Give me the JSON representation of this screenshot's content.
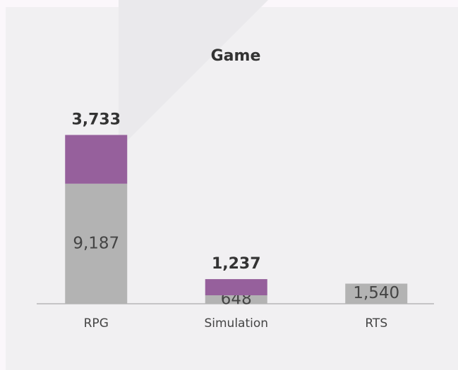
{
  "chart_data": {
    "type": "stacked_bar",
    "title": "Game",
    "categories": [
      "RPG",
      "Simulation",
      "RTS"
    ],
    "series": [
      {
        "color": "#b3b3b3",
        "values": [
          9187,
          648,
          1540
        ],
        "value_labels": [
          "9,187",
          "648",
          "1,540"
        ]
      },
      {
        "color": "#96609c",
        "values": [
          3733,
          1237,
          null
        ],
        "value_labels": [
          "3,733",
          "1,237",
          null
        ]
      }
    ],
    "ylim": [
      0,
      13000
    ]
  }
}
